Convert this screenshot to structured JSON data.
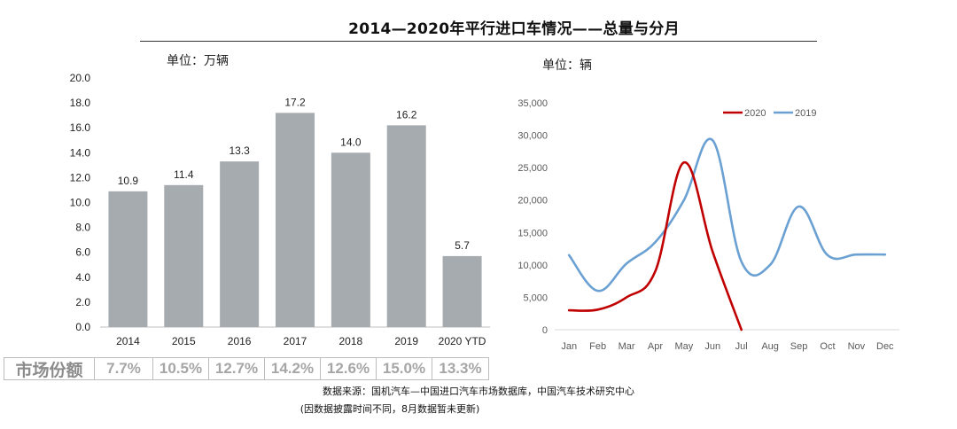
{
  "page": {
    "title": "2014—2020年平行进口车情况——总量与分月",
    "left_unit": "单位：万辆",
    "right_unit": "单位：辆",
    "market_share_label": "市场份额",
    "market_share": [
      "7.7%",
      "10.5%",
      "12.7%",
      "14.2%",
      "12.6%",
      "15.0%",
      "13.3%"
    ],
    "source": "数据来源：国机汽车—中国进口汽车市场数据库，中国汽车技术研究中心",
    "note": "(因数据披露时间不同，8月数据暂未更新)"
  },
  "colors": {
    "bar": "#a6abb0",
    "series_2020": "#c00000",
    "series_2019": "#6aa0d2"
  },
  "chart_data": [
    {
      "type": "bar",
      "categories": [
        "2014",
        "2015",
        "2016",
        "2017",
        "2018",
        "2019",
        "2020 YTD"
      ],
      "values": [
        10.9,
        11.4,
        13.3,
        17.2,
        14.0,
        16.2,
        5.7
      ],
      "value_labels": [
        "10.9",
        "11.4",
        "13.3",
        "17.2",
        "14.0",
        "16.2",
        "5.7"
      ],
      "ylim": [
        0,
        20
      ],
      "yticks": [
        "0.0",
        "2.0",
        "4.0",
        "6.0",
        "8.0",
        "10.0",
        "12.0",
        "14.0",
        "16.0",
        "18.0",
        "20.0"
      ],
      "grid": false
    },
    {
      "type": "line",
      "x": [
        "Jan",
        "Feb",
        "Mar",
        "Apr",
        "May",
        "Jun",
        "Jul",
        "Aug",
        "Sep",
        "Oct",
        "Nov",
        "Dec"
      ],
      "series": [
        {
          "name": "2020",
          "values": [
            3000,
            3100,
            5000,
            9000,
            25800,
            12000,
            0,
            null,
            null,
            null,
            null,
            null
          ]
        },
        {
          "name": "2019",
          "values": [
            11500,
            6000,
            10200,
            13500,
            20000,
            29200,
            10500,
            10000,
            19000,
            11500,
            11600,
            11600
          ]
        }
      ],
      "ylim": [
        0,
        35000
      ],
      "yticks": [
        "0",
        "5,000",
        "10,000",
        "15,000",
        "20,000",
        "25,000",
        "30,000",
        "35,000"
      ],
      "legend": "top",
      "grid": false
    }
  ]
}
